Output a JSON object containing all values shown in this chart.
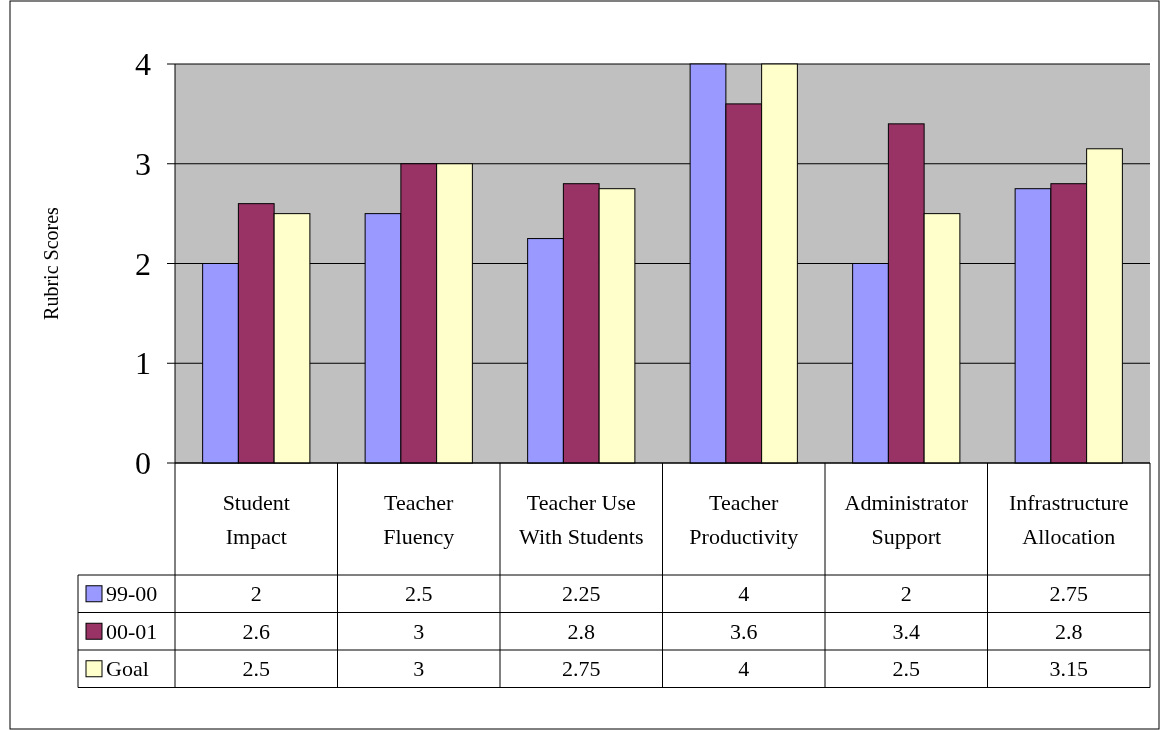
{
  "chart_data": {
    "type": "bar",
    "ylabel": "Rubric Scores",
    "categories": [
      "Student Impact",
      "Teacher Fluency",
      "Teacher Use With Students",
      "Teacher Productivity",
      "Administrator Support",
      "Infrastructure Allocation"
    ],
    "series": [
      {
        "name": "99-00",
        "color": "#9999ff",
        "values": [
          2,
          2.5,
          2.25,
          4,
          2,
          2.75
        ]
      },
      {
        "name": "00-01",
        "color": "#993366",
        "values": [
          2.6,
          3,
          2.8,
          3.6,
          3.4,
          2.8
        ]
      },
      {
        "name": "Goal",
        "color": "#ffffcc",
        "values": [
          2.5,
          3,
          2.75,
          4,
          2.5,
          3.15
        ]
      }
    ],
    "ylim": [
      0,
      4
    ],
    "yticks": [
      0,
      1,
      2,
      3,
      4
    ],
    "grid": "y",
    "data_labels": true,
    "legend": "bottom left"
  }
}
